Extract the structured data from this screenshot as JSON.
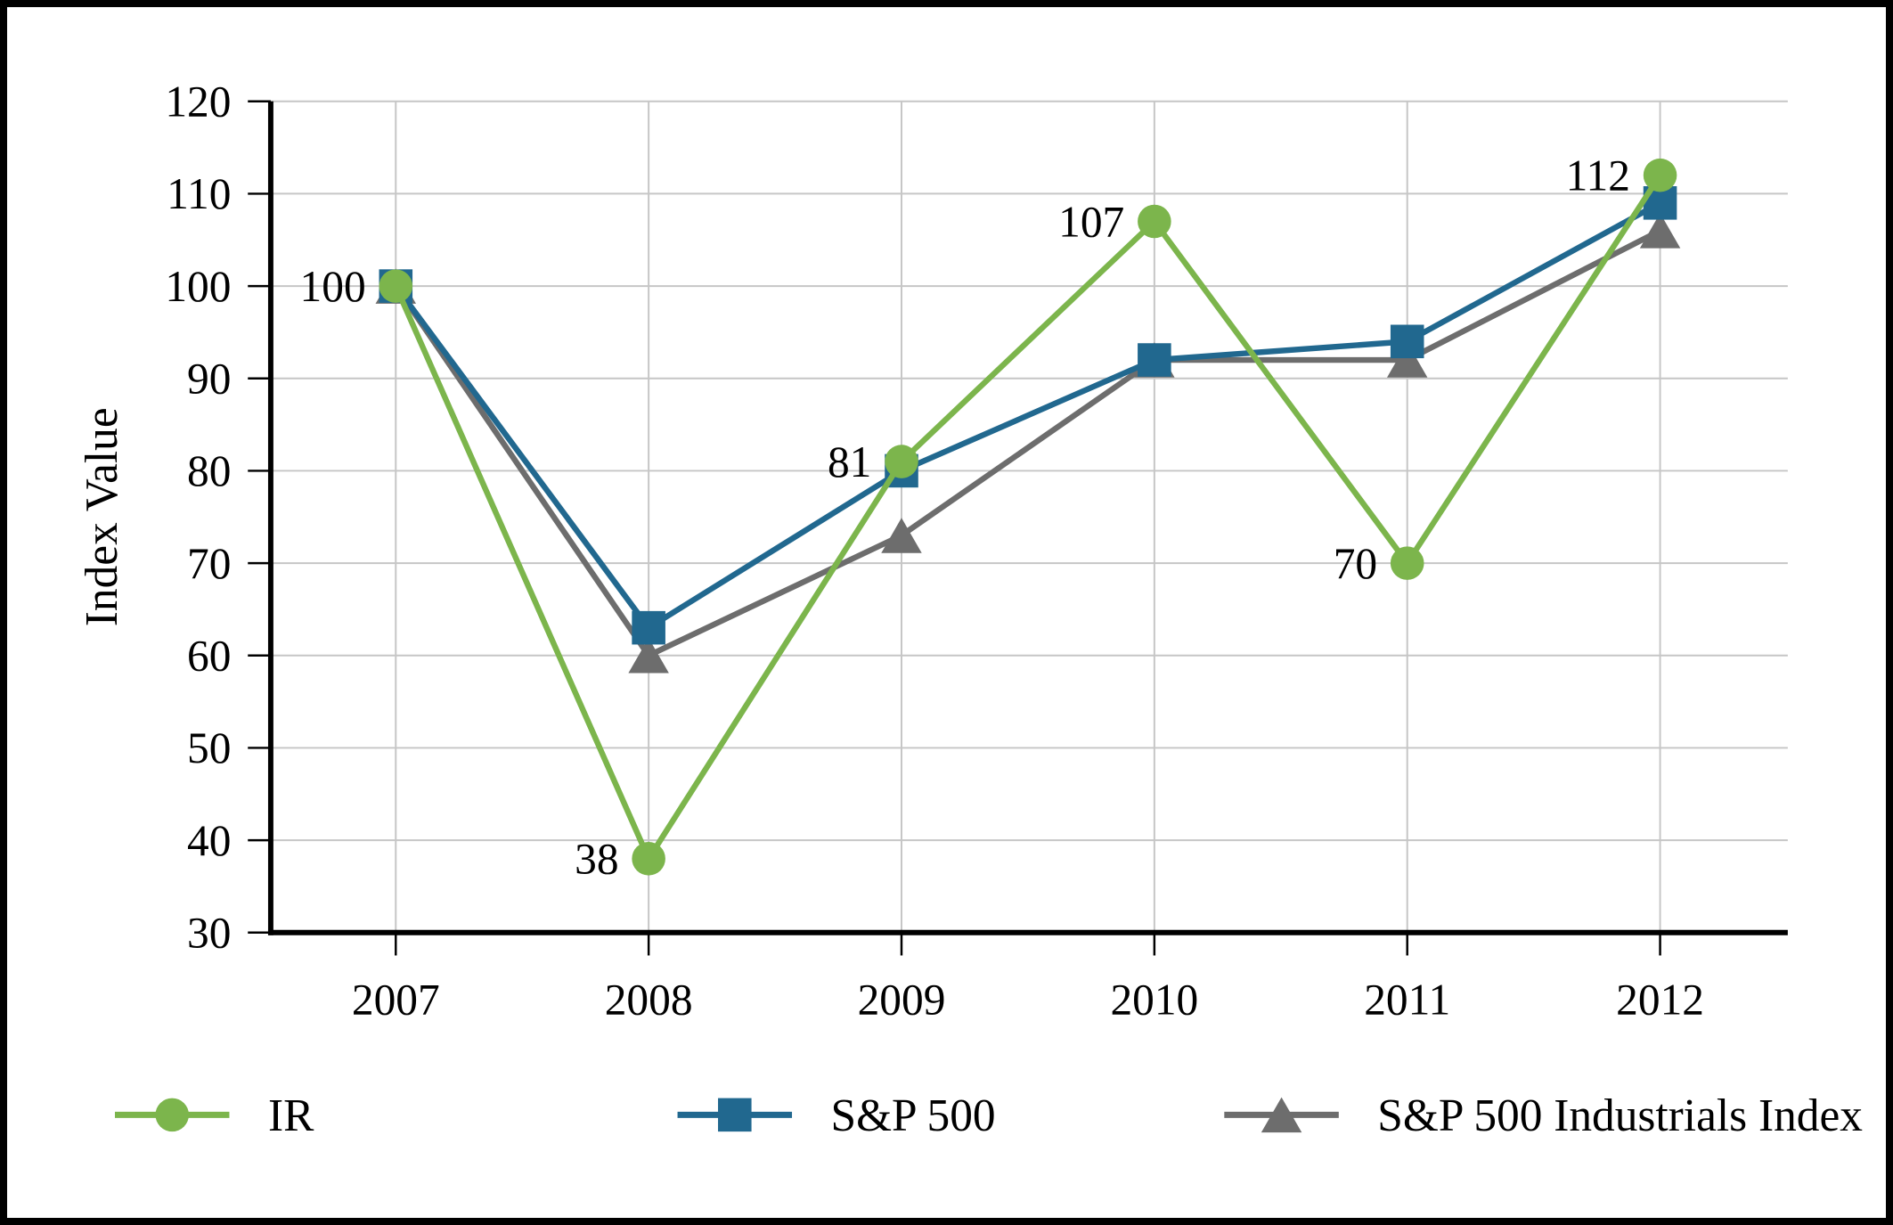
{
  "chart_data": {
    "type": "line",
    "title": "",
    "xlabel": "",
    "ylabel": "Index Value",
    "ylim": [
      30,
      120
    ],
    "ytick_step": 10,
    "ytick_labels": [
      "30",
      "40",
      "50",
      "60",
      "70",
      "80",
      "90",
      "100",
      "110",
      "120"
    ],
    "categories": [
      "2007",
      "2008",
      "2009",
      "2010",
      "2011",
      "2012"
    ],
    "grid": true,
    "legend_position": "bottom",
    "series": [
      {
        "name": "IR",
        "marker": "circle",
        "color": "#7cb54c",
        "values": [
          100,
          38,
          81,
          107,
          70,
          112
        ],
        "show_point_labels": true,
        "point_labels": [
          "100",
          "38",
          "81",
          "107",
          "70",
          "112"
        ]
      },
      {
        "name": "S&P 500",
        "marker": "square",
        "color": "#21688f",
        "values": [
          100,
          63,
          80,
          92,
          94,
          109
        ],
        "show_point_labels": false,
        "point_labels": []
      },
      {
        "name": "S&P 500 Industrials Index",
        "marker": "triangle",
        "color": "#6d6d6d",
        "values": [
          100,
          60,
          73,
          92,
          92,
          106
        ],
        "show_point_labels": false,
        "point_labels": []
      }
    ],
    "colors": {
      "axis": "#000000",
      "gridline": "#c6c6c6",
      "background": "#ffffff",
      "text": "#000000"
    }
  }
}
